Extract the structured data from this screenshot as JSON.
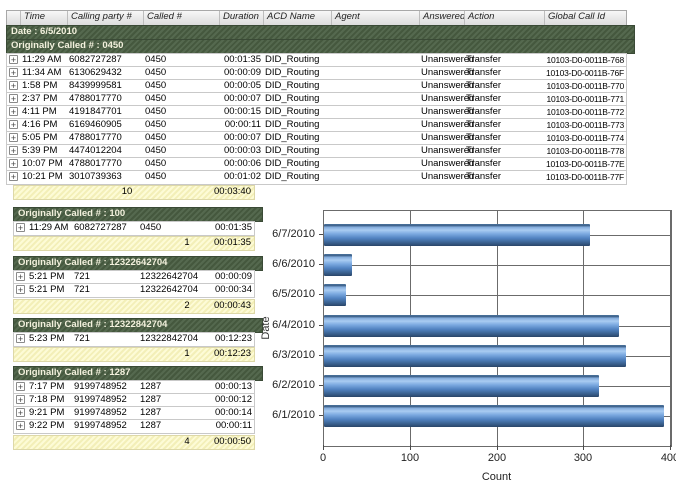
{
  "colors": {
    "group_band_green": "#4e6349",
    "summary_yellow": "#fdfbd6",
    "bar_blue": "#5e8fc9",
    "header_gray": "#e4e4e4"
  },
  "grid": {
    "columns": [
      "Time",
      "Calling party #",
      "Called #",
      "Duration",
      "ACD Name",
      "Agent",
      "Answered",
      "Action",
      "Global Call Id"
    ],
    "date_band": "Date : 6/5/2010",
    "expand_icon": "+",
    "groups": [
      {
        "title": "Originally Called # : 0450",
        "rows": [
          [
            "11:29 AM",
            "6082727287",
            "0450",
            "00:01:35",
            "DID_Routing",
            "",
            "Unanswered",
            "Transfer",
            "10103-D0-0011B-768"
          ],
          [
            "11:34 AM",
            "6130629432",
            "0450",
            "00:00:09",
            "DID_Routing",
            "",
            "Unanswered",
            "Transfer",
            "10103-D0-0011B-76F"
          ],
          [
            "1:58 PM",
            "8439999581",
            "0450",
            "00:00:05",
            "DID_Routing",
            "",
            "Unanswered",
            "Transfer",
            "10103-D0-0011B-770"
          ],
          [
            "2:37 PM",
            "4788017770",
            "0450",
            "00:00:07",
            "DID_Routing",
            "",
            "Unanswered",
            "Transfer",
            "10103-D0-0011B-771"
          ],
          [
            "4:11 PM",
            "4191847701",
            "0450",
            "00:00:15",
            "DID_Routing",
            "",
            "Unanswered",
            "Transfer",
            "10103-D0-0011B-772"
          ],
          [
            "4:16 PM",
            "6169460905",
            "0450",
            "00:00:11",
            "DID_Routing",
            "",
            "Unanswered",
            "Transfer",
            "10103-D0-0011B-773"
          ],
          [
            "5:05 PM",
            "4788017770",
            "0450",
            "00:00:07",
            "DID_Routing",
            "",
            "Unanswered",
            "Transfer",
            "10103-D0-0011B-774"
          ],
          [
            "5:39 PM",
            "4474012204",
            "0450",
            "00:00:03",
            "DID_Routing",
            "",
            "Unanswered",
            "Transfer",
            "10103-D0-0011B-778"
          ],
          [
            "10:07 PM",
            "4788017770",
            "0450",
            "00:00:06",
            "DID_Routing",
            "",
            "Unanswered",
            "Transfer",
            "10103-D0-0011B-77E"
          ],
          [
            "10:21 PM",
            "3010739363",
            "0450",
            "00:01:02",
            "DID_Routing",
            "",
            "Unanswered",
            "Transfer",
            "10103-D0-0011B-77F"
          ]
        ],
        "summary": {
          "count": "10",
          "total": "00:03:40"
        }
      },
      {
        "title": "Originally Called # : 100",
        "rows": [
          [
            "11:29 AM",
            "6082727287",
            "0450",
            "00:01:35"
          ]
        ],
        "summary": {
          "count": "1",
          "total": "00:01:35"
        }
      },
      {
        "title": "Originally Called # : 12322642704",
        "rows": [
          [
            "5:21 PM",
            "721",
            "12322642704",
            "00:00:09"
          ],
          [
            "5:21 PM",
            "721",
            "12322642704",
            "00:00:34"
          ]
        ],
        "summary": {
          "count": "2",
          "total": "00:00:43"
        }
      },
      {
        "title": "Originally Called # : 12322842704",
        "rows": [
          [
            "5:23 PM",
            "721",
            "12322842704",
            "00:12:23"
          ]
        ],
        "summary": {
          "count": "1",
          "total": "00:12:23"
        }
      },
      {
        "title": "Originally Called # : 1287",
        "rows": [
          [
            "7:17 PM",
            "9199748952",
            "1287",
            "00:00:13"
          ],
          [
            "7:18 PM",
            "9199748952",
            "1287",
            "00:00:12"
          ],
          [
            "9:21 PM",
            "9199748952",
            "1287",
            "00:00:14"
          ],
          [
            "9:22 PM",
            "9199748952",
            "1287",
            "00:00:11"
          ]
        ],
        "summary": {
          "count": "4",
          "total": "00:00:50"
        }
      }
    ]
  },
  "chart_data": {
    "type": "bar",
    "orientation": "horizontal",
    "title": "",
    "categories": [
      "6/7/2010",
      "6/6/2010",
      "6/5/2010",
      "6/4/2010",
      "6/3/2010",
      "6/2/2010",
      "6/1/2010"
    ],
    "values": [
      307,
      32,
      25,
      340,
      348,
      317,
      392
    ],
    "xlabel": "Count",
    "ylabel": "Date",
    "xlim": [
      0,
      400
    ],
    "xticks": [
      0,
      100,
      200,
      300,
      400
    ],
    "grid": true,
    "legend": "none",
    "bar_color": "#5e8fc9"
  }
}
